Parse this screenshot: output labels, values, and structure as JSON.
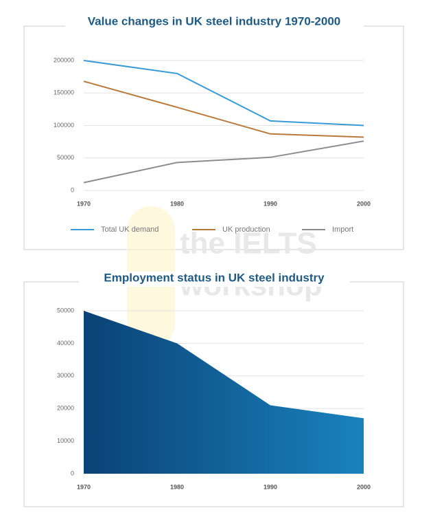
{
  "chart_data": [
    {
      "type": "line",
      "title": "Value changes in UK steel industry 1970-2000",
      "categories": [
        "1970",
        "1980",
        "1990",
        "2000"
      ],
      "series": [
        {
          "name": "Total UK demand",
          "color": "#3a9ad6",
          "values": [
            200000,
            180000,
            107000,
            100000
          ]
        },
        {
          "name": "UK production",
          "color": "#b87a3c",
          "values": [
            168000,
            128000,
            87000,
            82000
          ]
        },
        {
          "name": "Import",
          "color": "#8c8c8c",
          "values": [
            12000,
            43000,
            51000,
            76000
          ]
        }
      ],
      "ylim": [
        0,
        200000
      ],
      "yticks": [
        0,
        50000,
        100000,
        150000,
        200000
      ],
      "grid": true,
      "legend": "bottom"
    },
    {
      "type": "area",
      "title": "Employment status in UK steel industry",
      "categories": [
        "1970",
        "1980",
        "1990",
        "2000"
      ],
      "values": [
        50000,
        40000,
        21000,
        17000
      ],
      "color": "#0d5a92",
      "ylim": [
        0,
        50000
      ],
      "yticks": [
        0,
        10000,
        20000,
        30000,
        40000,
        50000
      ],
      "grid": true
    }
  ],
  "watermark": [
    "the IELTS",
    "workshop"
  ]
}
